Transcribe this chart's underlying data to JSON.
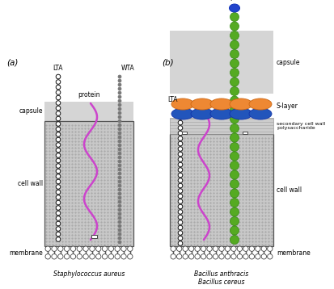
{
  "bg_color": "#ffffff",
  "panel_a_label": "(a)",
  "panel_b_label": "(b)",
  "species_a": "Staphylococcus aureus",
  "species_b1": "Bacillus anthracis",
  "species_b2": "Bacillus cereus",
  "lta_color_a": "#111111",
  "wta_color": "#888888",
  "protein_color": "#cc44cc",
  "green_bead_color": "#55aa22",
  "blue_ellipse_color": "#2255bb",
  "orange_ellipse_color": "#ee8833",
  "pili_tip_color": "#2244cc",
  "cell_wall_bg": "#c8c8c8",
  "dot_color": "#999999",
  "capsule_gray": "#d8d8d8",
  "scwp_gray": "#c8c8c8",
  "membrane_ec": "#444444"
}
